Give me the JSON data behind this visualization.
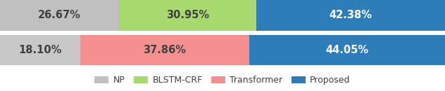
{
  "bar1": [
    26.67,
    30.95,
    42.38
  ],
  "bar2": [
    18.1,
    37.86,
    44.05
  ],
  "colors_bar1": [
    "#c0c0c0",
    "#a8d870",
    "#2e7db8"
  ],
  "colors_bar2": [
    "#c8c8c8",
    "#f59090",
    "#2e7db8"
  ],
  "labels_bar1": [
    "26.67%",
    "30.95%",
    "42.38%"
  ],
  "labels_bar2": [
    "18.10%",
    "37.86%",
    "44.05%"
  ],
  "text_color_dark": "#404040",
  "text_color_light": "#ffffff",
  "legend_labels": [
    "NP",
    "BLSTM-CRF",
    "Transformer",
    "Proposed"
  ],
  "legend_colors": [
    "#c0c0c0",
    "#a8d870",
    "#f59090",
    "#2e7db8"
  ],
  "bg_color": "#ffffff",
  "fontsize": 10.5
}
